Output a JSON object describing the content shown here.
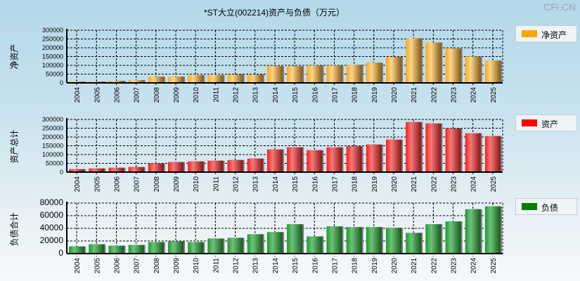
{
  "title": "*ST大立(002214)资产与负债（万元）",
  "watermark": "CFi.CN",
  "chart_data": [
    {
      "type": "bar",
      "title": "净资产",
      "ylabel": "净资产",
      "legend": "净资产",
      "color": "#f5a623",
      "categories": [
        "2004",
        "2005",
        "2006",
        "2007",
        "2008",
        "2009",
        "2010",
        "2011",
        "2012",
        "2013",
        "2014",
        "2015",
        "2016",
        "2017",
        "2018",
        "2019",
        "2020",
        "2021",
        "2022",
        "2023",
        "2024",
        "2025"
      ],
      "values": [
        8000,
        8000,
        12000,
        16000,
        36000,
        36000,
        44000,
        44000,
        48000,
        48000,
        95000,
        95000,
        99000,
        99000,
        103000,
        115000,
        148000,
        254000,
        230000,
        196000,
        150000,
        127000
      ],
      "ylim": [
        0,
        300000
      ],
      "yticks": [
        "0",
        "50000",
        "100000",
        "150000",
        "200000",
        "250000",
        "300000"
      ],
      "legend_position": "right"
    },
    {
      "type": "bar",
      "title": "资产",
      "ylabel": "资产总计",
      "legend": "资产",
      "color": "#ee1c25",
      "categories": [
        "2004",
        "2005",
        "2006",
        "2007",
        "2008",
        "2009",
        "2010",
        "2011",
        "2012",
        "2013",
        "2014",
        "2015",
        "2016",
        "2017",
        "2018",
        "2019",
        "2020",
        "2021",
        "2022",
        "2023",
        "2024",
        "2025"
      ],
      "values": [
        17000,
        21000,
        25000,
        29000,
        49000,
        57000,
        61000,
        65000,
        69000,
        77000,
        129000,
        141000,
        125000,
        141000,
        147000,
        157000,
        185000,
        285000,
        277000,
        249000,
        221000,
        205000
      ],
      "ylim": [
        0,
        300000
      ],
      "yticks": [
        "0",
        "50000",
        "100000",
        "150000",
        "200000",
        "250000",
        "300000"
      ],
      "legend_position": "right"
    },
    {
      "type": "bar",
      "title": "负债",
      "ylabel": "负债合计",
      "legend": "负债",
      "color": "#1e8a2e",
      "categories": [
        "2004",
        "2005",
        "2006",
        "2007",
        "2008",
        "2009",
        "2010",
        "2011",
        "2012",
        "2013",
        "2014",
        "2015",
        "2016",
        "2017",
        "2018",
        "2019",
        "2020",
        "2021",
        "2022",
        "2023",
        "2024",
        "2025"
      ],
      "values": [
        11300,
        14700,
        12500,
        13600,
        18100,
        19200,
        18100,
        23800,
        24900,
        30600,
        34000,
        46400,
        27200,
        43000,
        41900,
        41900,
        40800,
        32800,
        46400,
        50900,
        70200,
        74700
      ],
      "ylim": [
        0,
        80000
      ],
      "yticks": [
        "0",
        "20000",
        "40000",
        "60000",
        "80000"
      ],
      "legend_position": "right"
    }
  ]
}
